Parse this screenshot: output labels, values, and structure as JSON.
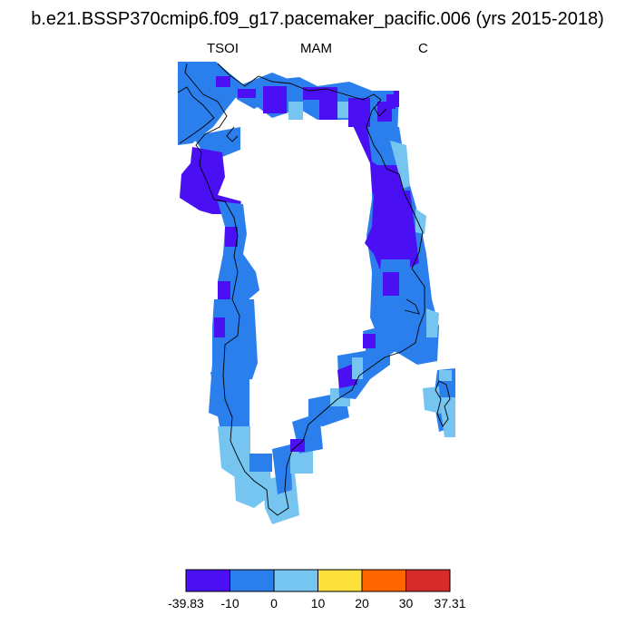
{
  "title": "b.e21.BSSP370cmip6.f09_g17.pacemaker_pacific.006 (yrs 2015-2018)",
  "subtitle_left": "TSOI",
  "subtitle_center": "MAM",
  "subtitle_right": "C",
  "colors": {
    "bin1": "#4a0ff2",
    "bin2": "#2b7fed",
    "bin3": "#76c4f0",
    "bin4": "#fde23c",
    "bin5": "#ff6600",
    "bin6": "#d52b2b",
    "coastline": "#000000"
  },
  "colorbar": {
    "labels": [
      "-39.83",
      "-10",
      "0",
      "10",
      "20",
      "30",
      "37.31"
    ],
    "colors": [
      "#4a0ff2",
      "#2b7fed",
      "#76c4f0",
      "#fde23c",
      "#ff6600",
      "#d52b2b"
    ]
  }
}
